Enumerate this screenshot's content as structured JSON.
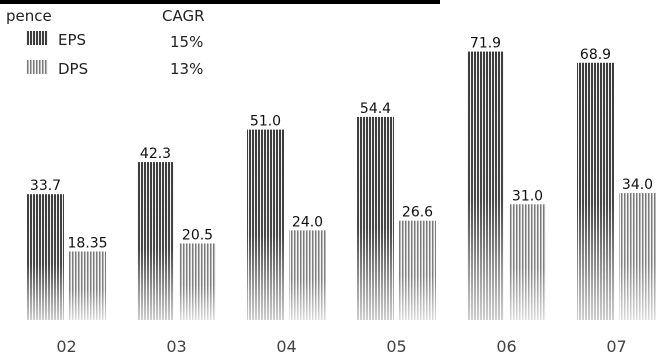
{
  "chart_data": {
    "type": "bar",
    "title": "",
    "xlabel": "",
    "ylabel": "",
    "unit_label": "pence",
    "legend_header": "CAGR",
    "categories": [
      "02",
      "03",
      "04",
      "05",
      "06",
      "07"
    ],
    "series": [
      {
        "name": "EPS",
        "cagr": "15%",
        "values": [
          33.7,
          42.3,
          51.0,
          54.4,
          71.9,
          68.9
        ],
        "labels": [
          "33.7",
          "42.3",
          "51.0",
          "54.4",
          "71.9",
          "68.9"
        ],
        "color": "#555555"
      },
      {
        "name": "DPS",
        "cagr": "13%",
        "values": [
          18.35,
          20.5,
          24.0,
          26.6,
          31.0,
          34.0
        ],
        "labels": [
          "18.35",
          "20.5",
          "24.0",
          "26.6",
          "31.0",
          "34.0"
        ],
        "color": "#8a8a8a"
      }
    ],
    "ylim": [
      0,
      75
    ],
    "grid": false,
    "legend_position": "top-left"
  }
}
